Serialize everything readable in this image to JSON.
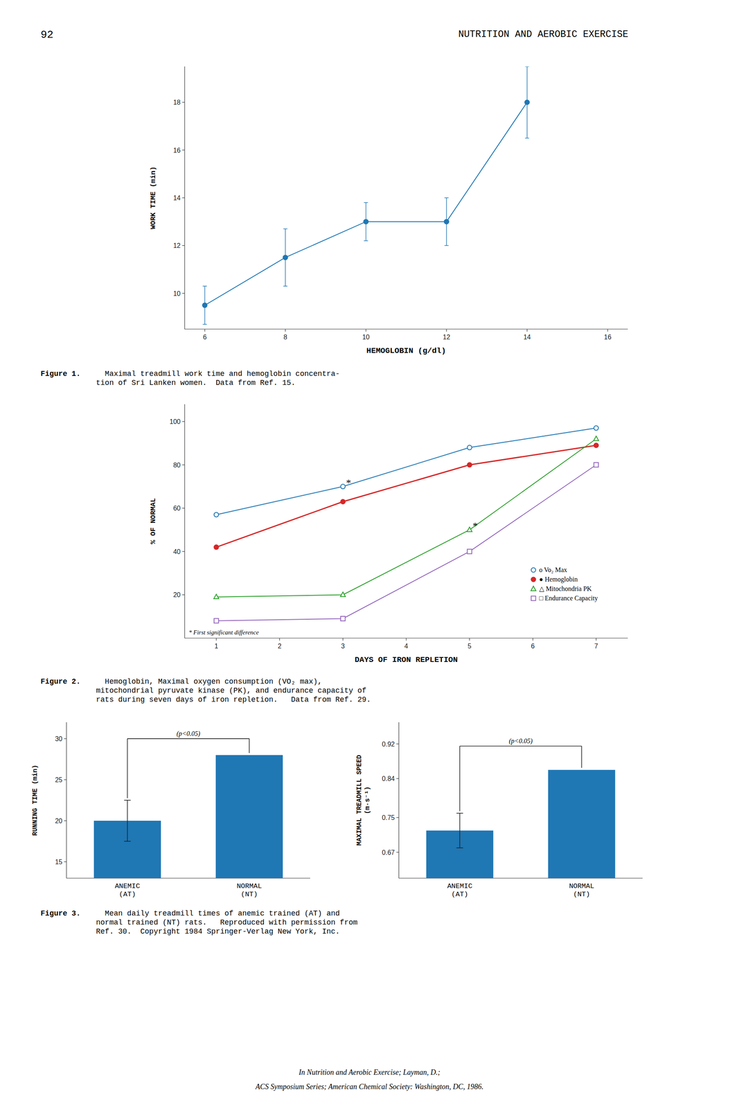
{
  "page_number": "92",
  "header": "NUTRITION AND AEROBIC EXERCISE",
  "footer": [
    "In Nutrition and Aerobic Exercise; Layman, D.;",
    "ACS Symposium Series; American Chemical Society: Washington, DC, 1986."
  ],
  "chart_data": [
    {
      "type": "line",
      "x": [
        6,
        8,
        10,
        12,
        14
      ],
      "series": [
        {
          "values": [
            9.5,
            11.5,
            13.0,
            13.0,
            18.0
          ],
          "yerr": [
            0.8,
            1.2,
            0.8,
            1.0,
            1.5
          ],
          "marker": "circle"
        }
      ],
      "xlabel": "HEMOGLOBIN (g/dl)",
      "ylabel": "WORK TIME (min)",
      "xlim": [
        5.5,
        16.5
      ],
      "ylim": [
        8.5,
        19.5
      ],
      "xticks": [
        6,
        8,
        10,
        12,
        14,
        16
      ],
      "yticks": [
        10,
        12,
        14,
        16,
        18
      ],
      "grid": false,
      "caption_label": "Figure 1.",
      "caption": "  Maximal treadmill work time and hemoglobin concentra-\ntion of Sri Lanken women.  Data from Ref. 15."
    },
    {
      "type": "line",
      "x": [
        1,
        3,
        5,
        7
      ],
      "series": [
        {
          "name": "o Vo₂ Max",
          "values": [
            57,
            70,
            88,
            97
          ],
          "marker": "circle-open"
        },
        {
          "name": "● Hemoglobin",
          "values": [
            42,
            63,
            80,
            89
          ],
          "marker": "circle"
        },
        {
          "name": "△ Mitochondria PK",
          "values": [
            19,
            20,
            50,
            92
          ],
          "marker": "triangle-open"
        },
        {
          "name": "□ Endurance Capacity",
          "values": [
            8,
            9,
            40,
            80
          ],
          "marker": "square-open"
        }
      ],
      "xlabel": "DAYS OF IRON REPLETION",
      "ylabel": "% OF NORMAL",
      "xlim": [
        0.5,
        7.5
      ],
      "ylim": [
        0,
        108
      ],
      "xticks": [
        1,
        2,
        3,
        4,
        5,
        6,
        7
      ],
      "yticks": [
        20,
        40,
        60,
        80,
        100
      ],
      "legend": "lower right",
      "grid": false,
      "annotations": [
        {
          "text": "*",
          "x": 3.05,
          "y": 73
        },
        {
          "text": "*",
          "x": 5.05,
          "y": 53
        },
        {
          "text": "* First significant difference"
        }
      ],
      "caption_label": "Figure 2.",
      "caption": "  Hemoglobin, Maximal oxygen consumption (VO₂ max),\nmitochondrial pyruvate kinase (PK), and endurance capacity of\nrats during seven days of iron repletion.   Data from Ref. 29."
    },
    {
      "type": "bar",
      "categories": [
        "ANEMIC\n(AT)",
        "NORMAL\n(NT)"
      ],
      "values": [
        20.0,
        28.0
      ],
      "error_low": [
        2.5,
        0
      ],
      "error_high": [
        2.5,
        0
      ],
      "ylabel": "RUNNING TIME (min)",
      "ylim": [
        13.0,
        32.0
      ],
      "yticks": [
        15,
        20,
        25,
        30
      ],
      "grid": false,
      "annotations": [
        {
          "text": "(p<0.05)",
          "y": 30.0
        }
      ],
      "caption_label": "Figure 3.",
      "caption": "  Mean daily treadmill times of anemic trained (AT) and\nnormal trained (NT) rats.   Reproduced with permission from\nRef. 30.  Copyright 1984 Springer-Verlag New York, Inc."
    },
    {
      "type": "bar",
      "categories": [
        "ANEMIC\n(AT)",
        "NORMAL\n(NT)"
      ],
      "values": [
        0.72,
        0.86
      ],
      "error_low": [
        0.04,
        0
      ],
      "error_high": [
        0.04,
        0
      ],
      "ylabel": "MAXIMAL TREADMILL SPEED\n(m·s⁻¹)",
      "ylim": [
        0.61,
        0.97
      ],
      "yticks": [
        0.67,
        0.75,
        0.84,
        0.92
      ],
      "grid": false,
      "annotations": [
        {
          "text": "(p<0.05)",
          "y": 0.915
        }
      ]
    }
  ]
}
